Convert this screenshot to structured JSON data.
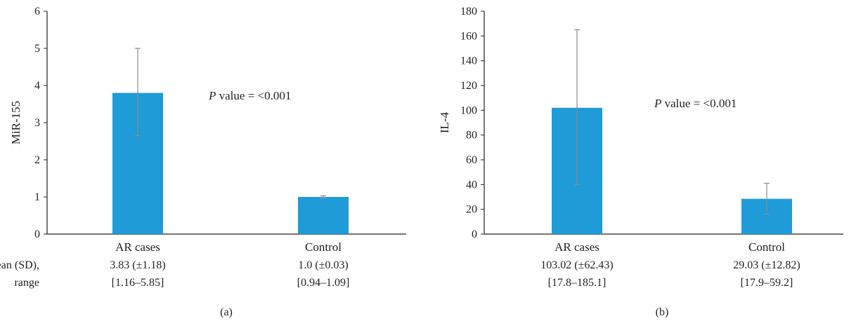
{
  "colors": {
    "bar": "#1f9bd7",
    "axis": "#231f20",
    "error_bar": "#8c8c8c"
  },
  "chart_data": [
    {
      "type": "bar",
      "panel_label": "(a)",
      "ylabel": "MiR-155",
      "ylim": [
        0,
        6
      ],
      "yticks": [
        0,
        1,
        2,
        3,
        4,
        5,
        6
      ],
      "categories": [
        "AR cases",
        "Control"
      ],
      "values": [
        3.8,
        1.0
      ],
      "error_low": [
        2.65,
        0.97
      ],
      "error_high": [
        5.0,
        1.03
      ],
      "annotation": {
        "italic": "P",
        "text": " value = <0.001"
      },
      "row_label_lines": [
        "Mean (SD),",
        "range"
      ],
      "stats": [
        {
          "mean_sd": "3.83 (±1.18)",
          "range": "[1.16–5.85]"
        },
        {
          "mean_sd": "1.0 (±0.03)",
          "range": "[0.94–1.09]"
        }
      ],
      "grid": false,
      "legend": "none"
    },
    {
      "type": "bar",
      "panel_label": "(b)",
      "ylabel": "IL-4",
      "ylim": [
        0,
        180
      ],
      "yticks": [
        0,
        20,
        40,
        60,
        80,
        100,
        120,
        140,
        160,
        180
      ],
      "categories": [
        "AR cases",
        "Control"
      ],
      "values": [
        102,
        28.5
      ],
      "error_low": [
        40,
        16
      ],
      "error_high": [
        165,
        41
      ],
      "annotation": {
        "italic": "P",
        "text": " value = <0.001"
      },
      "row_label_lines": [],
      "stats": [
        {
          "mean_sd": "103.02 (±62.43)",
          "range": "[17.8–185.1]"
        },
        {
          "mean_sd": "29.03 (±12.82)",
          "range": "[17.9–59.2]"
        }
      ],
      "grid": false,
      "legend": "none"
    }
  ]
}
